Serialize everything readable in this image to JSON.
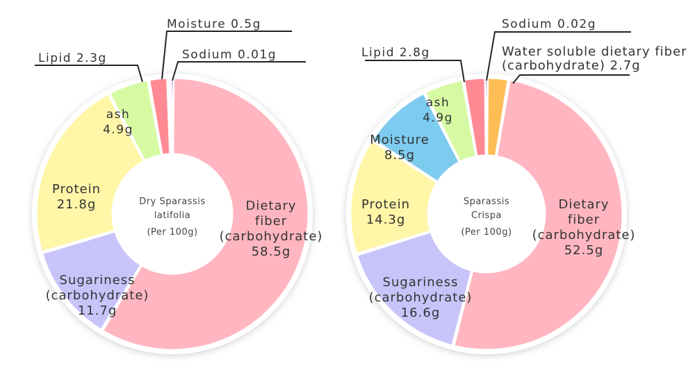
{
  "colors": {
    "dietary_fiber": "#FFB6C0",
    "sugariness": "#C8C4FA",
    "protein": "#FFF6A8",
    "ash": "#D6FAA2",
    "lipid": "#FF8A94",
    "moisture": "#7DCBEF",
    "sodium": "#B01FC8",
    "water_soluble_fiber": "#FFBE55"
  },
  "chart_data": [
    {
      "type": "pie",
      "variant": "donut",
      "center_label": [
        "Dry Sparassis",
        "latifolia",
        "(Per 100g)"
      ],
      "slices": [
        {
          "key": "dietary_fiber",
          "value": 58.5,
          "label_lines": [
            "Dietary",
            "fiber",
            "(carbohydrate)",
            "58.5g"
          ]
        },
        {
          "key": "sugariness",
          "value": 11.7,
          "label_lines": [
            "Sugariness",
            "(carbohydrate)",
            "11.7g"
          ]
        },
        {
          "key": "protein",
          "value": 21.8,
          "label_lines": [
            "Protein",
            "21.8g"
          ]
        },
        {
          "key": "ash",
          "value": 4.9,
          "label_lines": [
            "ash",
            "4.9g"
          ]
        },
        {
          "key": "lipid",
          "value": 2.3,
          "label_lines": [
            "Lipid 2.3g"
          ]
        },
        {
          "key": "moisture",
          "value": 0.5,
          "label_lines": [
            "Moisture 0.5g"
          ]
        },
        {
          "key": "sodium",
          "value": 0.01,
          "label_lines": [
            "Sodium 0.01g"
          ]
        }
      ]
    },
    {
      "type": "pie",
      "variant": "donut",
      "center_label": [
        "Sparassis",
        "Crispa",
        "(Per 100g)"
      ],
      "slices": [
        {
          "key": "dietary_fiber",
          "value": 52.5,
          "label_lines": [
            "Dietary",
            "fiber",
            "(carbohydrate)",
            "52.5g"
          ]
        },
        {
          "key": "sugariness",
          "value": 16.6,
          "label_lines": [
            "Sugariness",
            "(carbohydrate)",
            "16.6g"
          ]
        },
        {
          "key": "protein",
          "value": 14.3,
          "label_lines": [
            "Protein",
            "14.3g"
          ]
        },
        {
          "key": "moisture",
          "value": 8.5,
          "label_lines": [
            "Moisture",
            "8.5g"
          ]
        },
        {
          "key": "ash",
          "value": 4.9,
          "label_lines": [
            "ash",
            "4.9g"
          ]
        },
        {
          "key": "lipid",
          "value": 2.8,
          "label_lines": [
            "Lipid 2.8g"
          ]
        },
        {
          "key": "sodium",
          "value": 0.02,
          "label_lines": [
            "Sodium 0.02g"
          ]
        },
        {
          "key": "water_soluble_fiber",
          "value": 2.7,
          "label_lines": [
            "Water soluble dietary fiber",
            "(carbohydrate) 2.7g"
          ]
        }
      ]
    }
  ]
}
